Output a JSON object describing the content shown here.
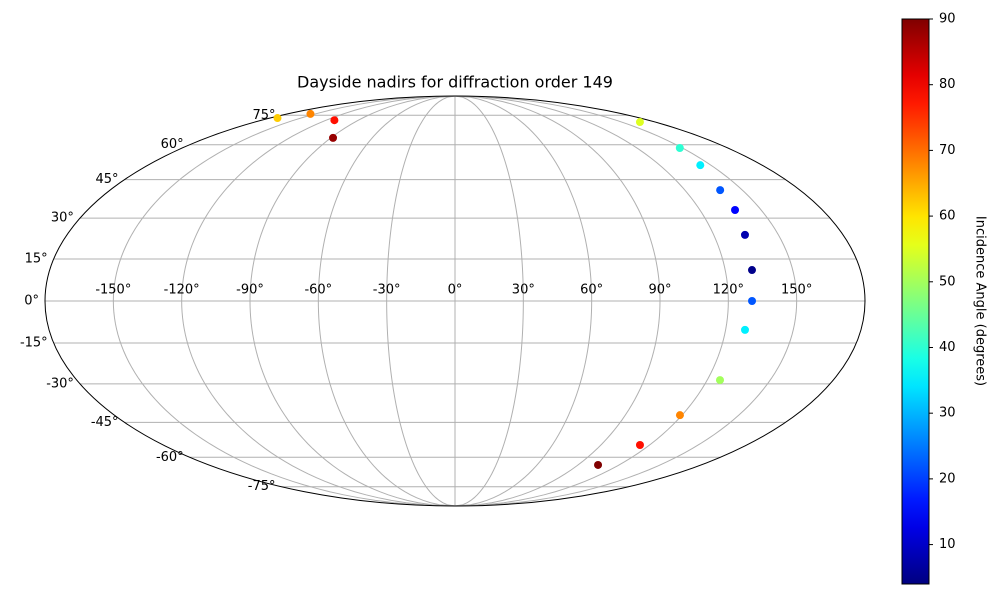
{
  "chart_data": {
    "type": "scatter",
    "projection": "mollweide",
    "title": "Dayside nadirs for diffraction order 149",
    "colorbar_label": "Incidence Angle (degrees)",
    "colormap": "jet",
    "clim": [
      4,
      90
    ],
    "cticks": [
      10,
      20,
      30,
      40,
      50,
      60,
      70,
      80,
      90
    ],
    "xlim": [
      -180,
      180
    ],
    "ylim": [
      -90,
      90
    ],
    "xticks": [
      {
        "value": -150,
        "label": "-150°"
      },
      {
        "value": -120,
        "label": "-120°"
      },
      {
        "value": -90,
        "label": "-90°"
      },
      {
        "value": -60,
        "label": "-60°"
      },
      {
        "value": -30,
        "label": "-30°"
      },
      {
        "value": 0,
        "label": "0°"
      },
      {
        "value": 30,
        "label": "30°"
      },
      {
        "value": 60,
        "label": "60°"
      },
      {
        "value": 90,
        "label": "90°"
      },
      {
        "value": 120,
        "label": "120°"
      },
      {
        "value": 150,
        "label": "150°"
      }
    ],
    "yticks": [
      {
        "value": -75,
        "label": "-75°"
      },
      {
        "value": -60,
        "label": "-60°"
      },
      {
        "value": -45,
        "label": "-45°"
      },
      {
        "value": -30,
        "label": "-30°"
      },
      {
        "value": -15,
        "label": "-15°"
      },
      {
        "value": 0,
        "label": "0°"
      },
      {
        "value": 15,
        "label": "15°"
      },
      {
        "value": 30,
        "label": "30°"
      },
      {
        "value": 45,
        "label": "45°"
      },
      {
        "value": 60,
        "label": "60°"
      },
      {
        "value": 75,
        "label": "75°"
      }
    ],
    "grid": true,
    "x": [
      -172.7,
      -155.3,
      -112.3,
      -88.4,
      166.4,
      148.3,
      143.8,
      138.4,
      137.2,
      134.5,
      131.9,
      130.4,
      128.6,
      126.1,
      118.9,
      114.1,
      104.6
    ],
    "y": [
      73.4,
      75.8,
      72.2,
      63.2,
      71.2,
      58.5,
      51.0,
      40.8,
      33.1,
      23.8,
      11.05,
      0,
      -10.3,
      -28.6,
      -42.1,
      -54.5,
      -63.6
    ],
    "values": [
      62,
      68,
      78,
      88,
      55,
      40,
      35,
      22,
      15,
      8,
      5,
      22,
      35,
      50,
      68,
      78,
      90
    ]
  }
}
